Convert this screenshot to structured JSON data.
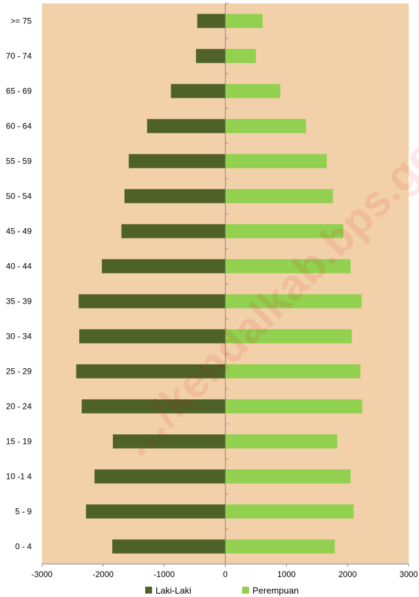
{
  "chart_data": {
    "type": "bar",
    "orientation": "horizontal",
    "categories": [
      ">= 75",
      "70 - 74",
      "65 - 69",
      "60 - 64",
      "55 - 59",
      "50 - 54",
      "45 - 49",
      "40 - 44",
      "35 - 39",
      "30 - 34",
      "25 - 29",
      "20 - 24",
      "15 - 19",
      "10 -1 4",
      "5 - 9",
      "0 - 4"
    ],
    "series": [
      {
        "name": "Laki-Laki",
        "color": "#4e6228",
        "values": [
          -460,
          -480,
          -890,
          -1280,
          -1580,
          -1650,
          -1700,
          -2020,
          -2400,
          -2390,
          -2440,
          -2350,
          -1840,
          -2140,
          -2280,
          -1850
        ]
      },
      {
        "name": "Perempuan",
        "color": "#92d050",
        "values": [
          610,
          500,
          900,
          1320,
          1660,
          1760,
          1930,
          2050,
          2230,
          2070,
          2210,
          2240,
          1830,
          2050,
          2100,
          1790
        ]
      }
    ],
    "xlim": [
      -3000,
      3000
    ],
    "xticks": [
      "-3000",
      "-2000",
      "-1000",
      "0",
      "1000",
      "2000",
      "3000"
    ],
    "xtick_values": [
      -3000,
      -2000,
      -1000,
      0,
      1000,
      2000,
      3000
    ],
    "legend_position": "bottom",
    "plot_background": "#f2d0a9",
    "axis_color": "#868686",
    "grid": false,
    "watermark": "…/kendalkab.bps.go.id"
  }
}
